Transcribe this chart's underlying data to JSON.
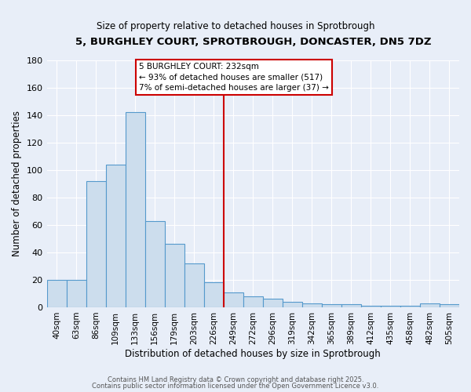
{
  "title_line1": "5, BURGHLEY COURT, SPROTBROUGH, DONCASTER, DN5 7DZ",
  "title_line2": "Size of property relative to detached houses in Sprotbrough",
  "xlabel": "Distribution of detached houses by size in Sprotbrough",
  "ylabel": "Number of detached properties",
  "categories": [
    "40sqm",
    "63sqm",
    "86sqm",
    "109sqm",
    "133sqm",
    "156sqm",
    "179sqm",
    "203sqm",
    "226sqm",
    "249sqm",
    "272sqm",
    "296sqm",
    "319sqm",
    "342sqm",
    "365sqm",
    "389sqm",
    "412sqm",
    "435sqm",
    "458sqm",
    "482sqm",
    "505sqm"
  ],
  "values": [
    20,
    20,
    92,
    104,
    142,
    63,
    46,
    32,
    18,
    11,
    8,
    6,
    4,
    3,
    2,
    2,
    1,
    1,
    1,
    3,
    2
  ],
  "bar_color": "#ccdded",
  "bar_edge_color": "#5599cc",
  "vline_x_index": 8,
  "vline_color": "#cc0000",
  "annotation_title": "5 BURGHLEY COURT: 232sqm",
  "annotation_line2": "← 93% of detached houses are smaller (517)",
  "annotation_line3": "7% of semi-detached houses are larger (37) →",
  "annotation_box_edge": "#cc0000",
  "annotation_box_face": "#ffffff",
  "ylim": [
    0,
    180
  ],
  "yticks": [
    0,
    20,
    40,
    60,
    80,
    100,
    120,
    140,
    160,
    180
  ],
  "footer_line1": "Contains HM Land Registry data © Crown copyright and database right 2025.",
  "footer_line2": "Contains public sector information licensed under the Open Government Licence v3.0.",
  "background_color": "#e8eef8",
  "grid_color": "#ffffff",
  "fig_width": 6.0,
  "fig_height": 5.0,
  "dpi": 100
}
